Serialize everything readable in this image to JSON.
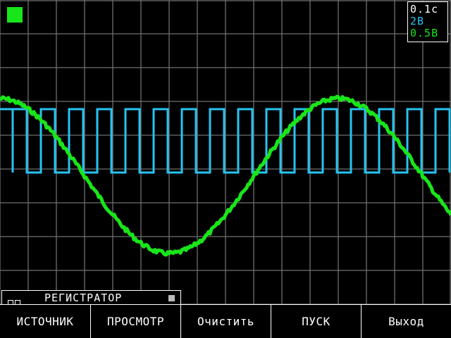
{
  "scale": {
    "time": "0.1с",
    "ch1": "2В",
    "ch2": "0.5В",
    "ch1_color": "#27c3f0",
    "ch2_color": "#19e61a"
  },
  "mode": {
    "title": "РЕГИСТРАТОР"
  },
  "softkeys": [
    "ИСТОЧНИК",
    "ПРОСМОТР",
    "Очистить",
    "ПУСК",
    "Выход"
  ],
  "colors": {
    "grid": "#6f6f6f",
    "background": "#000000",
    "square_wave": "#27c3f0",
    "sine_wave": "#19e61a",
    "run_indicator": "#19e61a"
  }
}
